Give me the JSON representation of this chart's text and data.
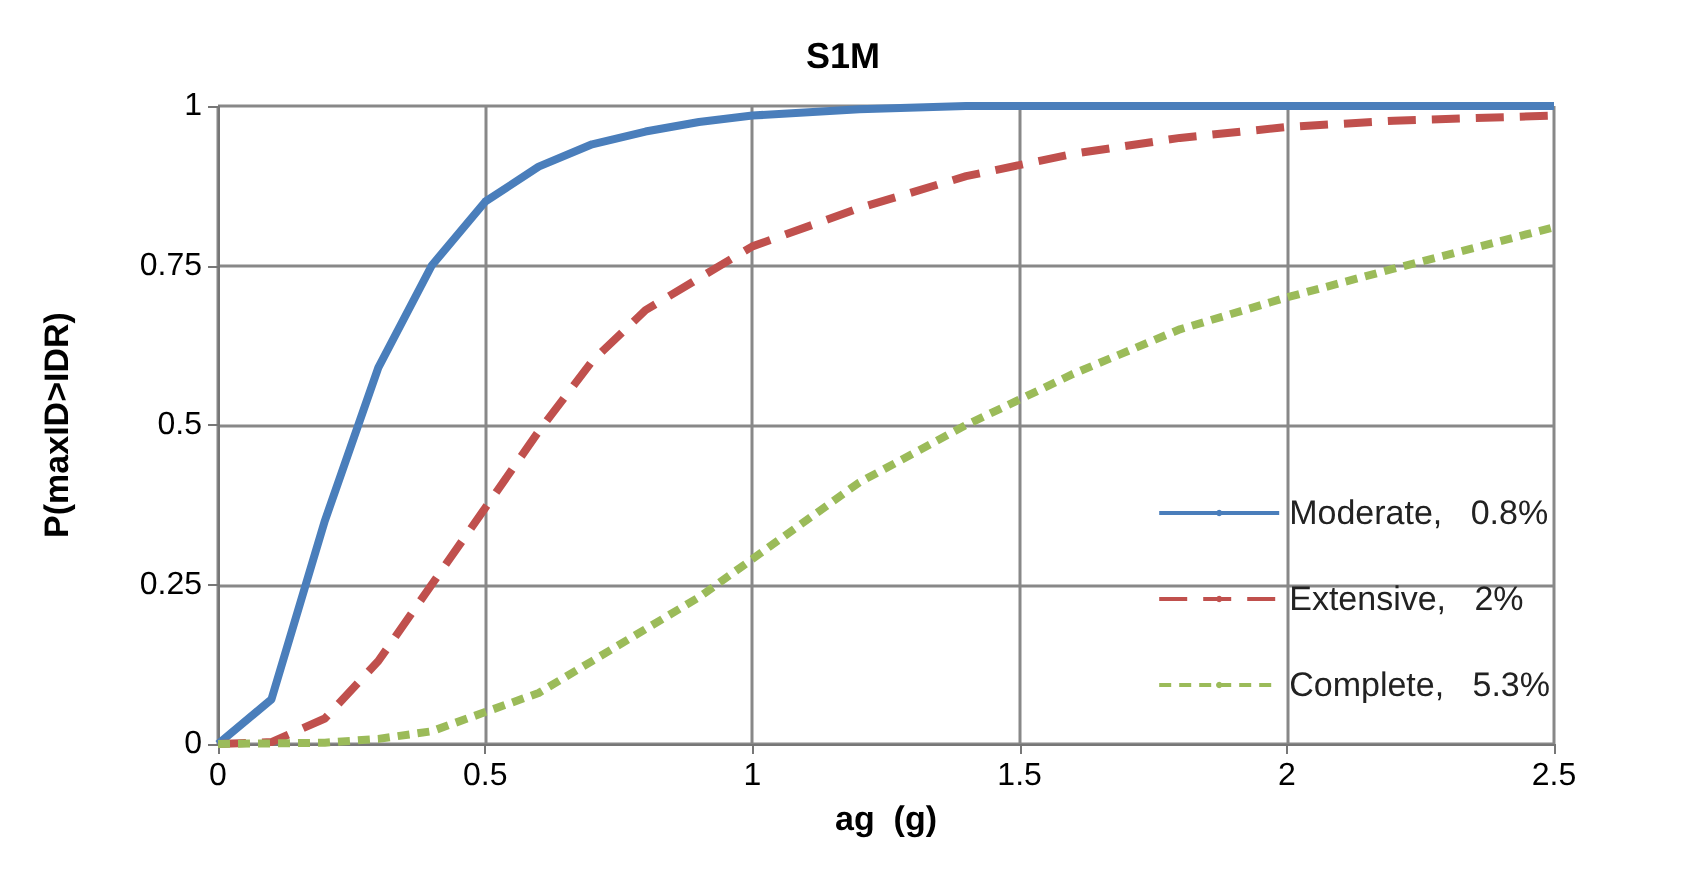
{
  "chart_data": {
    "type": "line",
    "title": "S1M",
    "xlabel": "ag  (g)",
    "ylabel": "P(maxID>IDR)",
    "xlim": [
      0,
      2.5
    ],
    "xticks": [
      0,
      0.5,
      1,
      1.5,
      2,
      2.5
    ],
    "ylim": [
      0,
      1
    ],
    "yticks": [
      0,
      0.25,
      0.5,
      0.75,
      1
    ],
    "grid": true,
    "legend": "right",
    "marker": "none",
    "series": [
      {
        "name": "Moderate,   0.8%",
        "color": "#4a7ebb",
        "line_style": "solid",
        "x": [
          0,
          0.1,
          0.2,
          0.3,
          0.4,
          0.5,
          0.6,
          0.7,
          0.8,
          0.9,
          1.0,
          1.2,
          1.4,
          1.7,
          2.0,
          2.5
        ],
        "values": [
          0,
          0.07,
          0.35,
          0.59,
          0.75,
          0.85,
          0.905,
          0.94,
          0.96,
          0.975,
          0.985,
          0.995,
          1,
          1,
          1,
          1
        ]
      },
      {
        "name": "Extensive,   2%",
        "color": "#c0504d",
        "line_style": "dashed",
        "x": [
          0,
          0.1,
          0.2,
          0.3,
          0.4,
          0.5,
          0.6,
          0.7,
          0.8,
          0.9,
          1.0,
          1.2,
          1.4,
          1.6,
          1.8,
          2.0,
          2.2,
          2.5
        ],
        "values": [
          0,
          0.003,
          0.04,
          0.13,
          0.25,
          0.37,
          0.49,
          0.6,
          0.68,
          0.73,
          0.78,
          0.84,
          0.89,
          0.925,
          0.95,
          0.967,
          0.977,
          0.985
        ]
      },
      {
        "name": "Complete,   5.3%",
        "color": "#9bbb59",
        "line_style": "dotted",
        "x": [
          0,
          0.2,
          0.3,
          0.4,
          0.5,
          0.6,
          0.7,
          0.8,
          0.9,
          1.0,
          1.2,
          1.4,
          1.6,
          1.8,
          2.0,
          2.2,
          2.5
        ],
        "values": [
          0,
          0.002,
          0.008,
          0.02,
          0.05,
          0.08,
          0.13,
          0.18,
          0.23,
          0.29,
          0.41,
          0.5,
          0.58,
          0.65,
          0.7,
          0.745,
          0.81
        ]
      }
    ]
  }
}
